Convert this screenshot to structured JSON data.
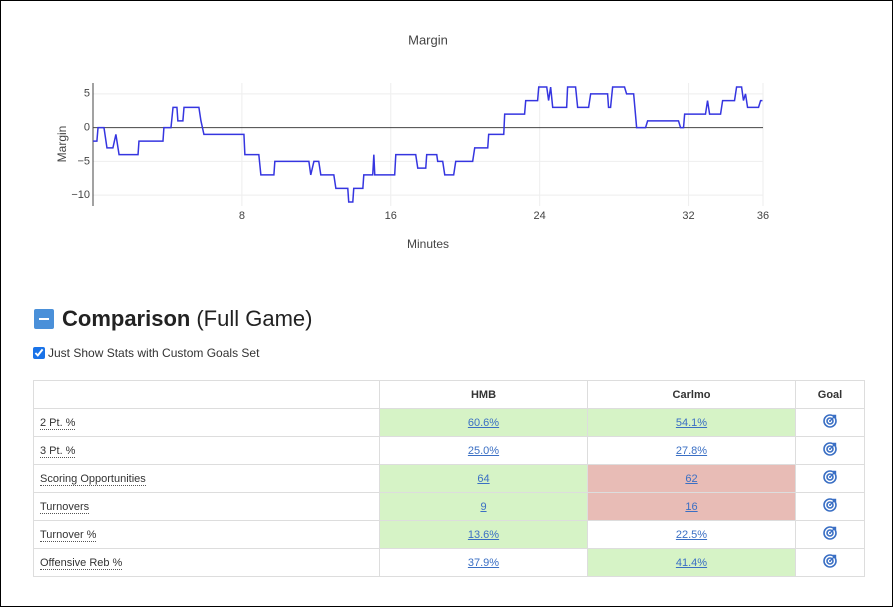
{
  "chart_data": {
    "type": "line",
    "title": "Margin",
    "x_label": "Minutes",
    "y_label": "Margin",
    "xlim": [
      0,
      36
    ],
    "ylim": [
      -11.6,
      6.6
    ],
    "xticks": [
      8,
      16,
      24,
      32,
      36
    ],
    "yticks": [
      {
        "value": -10,
        "label": "−10"
      },
      {
        "value": -5,
        "label": "−5"
      },
      0,
      5
    ],
    "grid": true,
    "x": [
      0,
      0.21,
      0.27,
      0.59,
      0.75,
      1.07,
      1.23,
      1.4,
      2.42,
      2.47,
      3.76,
      3.81,
      4.19,
      4.3,
      4.51,
      4.56,
      4.83,
      4.89,
      5.69,
      5.8,
      5.96,
      8.11,
      8.16,
      8.91,
      9.02,
      9.72,
      9.77,
      11.6,
      11.7,
      11.87,
      12.13,
      12.24,
      12.94,
      13.05,
      13.69,
      13.74,
      13.96,
      14.01,
      14.5,
      14.55,
      15.03,
      15.09,
      15.14,
      16.21,
      16.27,
      17.34,
      17.45,
      17.88,
      17.93,
      18.47,
      18.52,
      18.79,
      18.9,
      19.38,
      19.49,
      20.4,
      20.51,
      21.21,
      21.26,
      22.07,
      22.12,
      23.19,
      23.25,
      23.89,
      23.95,
      24.38,
      24.48,
      24.59,
      24.7,
      25.45,
      25.5,
      25.93,
      26.04,
      26.63,
      26.74,
      27.65,
      27.7,
      27.81,
      27.92,
      28.56,
      28.67,
      29.05,
      29.21,
      29.69,
      29.8,
      31.46,
      31.57,
      31.73,
      31.79,
      32.91,
      33.02,
      33.13,
      33.72,
      33.83,
      34.47,
      34.58,
      34.85,
      34.95,
      35.06,
      35.17,
      35.76,
      35.87,
      35.97
    ],
    "series": [
      {
        "color": "#3535e0",
        "values": [
          -2,
          -2,
          0,
          0,
          -3,
          -3,
          -1,
          -4,
          -4,
          -2,
          -2,
          0,
          0,
          3,
          3,
          1,
          1,
          3,
          3,
          1,
          -1,
          -1,
          -4,
          -4,
          -7,
          -7,
          -5,
          -5,
          -7,
          -5,
          -5,
          -7,
          -7,
          -9,
          -9,
          -11,
          -11,
          -9,
          -9,
          -7,
          -7,
          -4,
          -7,
          -7,
          -4,
          -4,
          -6,
          -6,
          -4,
          -4,
          -5,
          -5,
          -7,
          -7,
          -5,
          -5,
          -3,
          -3,
          -1,
          -1,
          2,
          2,
          4,
          4,
          6,
          6,
          4,
          6,
          3,
          3,
          6,
          6,
          3,
          3,
          5,
          5,
          3,
          3,
          6,
          6,
          5,
          5,
          0,
          0,
          1,
          1,
          0,
          0,
          2,
          2,
          4,
          2,
          2,
          4,
          4,
          6,
          6,
          4,
          5,
          3,
          3,
          4,
          4
        ]
      }
    ]
  },
  "section": {
    "title": "Comparison",
    "subtitle": "(Full Game)",
    "checkbox_label": "Just Show Stats with Custom Goals Set"
  },
  "table": {
    "columns": [
      "HMB",
      "Carlmo",
      "Goal"
    ],
    "rows": [
      {
        "label": "2 Pt. %",
        "values": [
          "60.6%",
          "54.1%"
        ],
        "colors": [
          "#d6f3c6",
          "#d6f3c6"
        ]
      },
      {
        "label": "3 Pt. %",
        "values": [
          "25.0%",
          "27.8%"
        ],
        "colors": [
          "#ffffff",
          "#ffffff"
        ]
      },
      {
        "label": "Scoring Opportunities",
        "values": [
          "64",
          "62"
        ],
        "colors": [
          "#d6f3c6",
          "#e8bcb6"
        ]
      },
      {
        "label": "Turnovers",
        "values": [
          "9",
          "16"
        ],
        "colors": [
          "#d6f3c6",
          "#e8bcb6"
        ]
      },
      {
        "label": "Turnover %",
        "values": [
          "13.6%",
          "22.5%"
        ],
        "colors": [
          "#d6f3c6",
          "#ffffff"
        ]
      },
      {
        "label": "Offensive Reb %",
        "values": [
          "37.9%",
          "41.4%"
        ],
        "colors": [
          "#ffffff",
          "#d6f3c6"
        ]
      }
    ]
  }
}
